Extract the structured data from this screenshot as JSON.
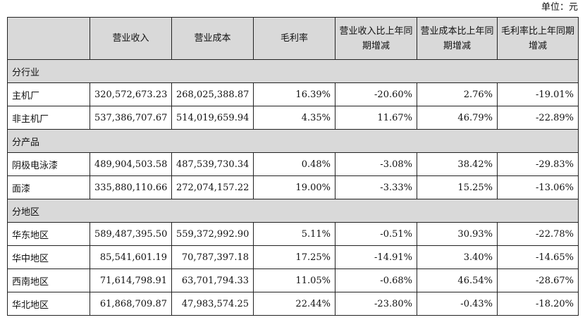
{
  "unit_label": "单位：元",
  "headers": [
    "",
    "营业收入",
    "营业成本",
    "毛利率",
    "营业收入比上年同期增减",
    "营业成本比上年同期增减",
    "毛利率比上年同期增减"
  ],
  "groups": [
    {
      "title": "分行业",
      "rows": [
        {
          "label": "主机厂",
          "revenue": "320,572,673.23",
          "cost": "268,025,388.87",
          "margin": "16.39%",
          "rev_change": "-20.60%",
          "cost_change": "2.76%",
          "margin_change": "-19.01%"
        },
        {
          "label": "非主机厂",
          "revenue": "537,386,707.67",
          "cost": "514,019,659.94",
          "margin": "4.35%",
          "rev_change": "11.67%",
          "cost_change": "46.79%",
          "margin_change": "-22.89%"
        }
      ]
    },
    {
      "title": "分产品",
      "rows": [
        {
          "label": "阴极电泳漆",
          "revenue": "489,904,503.58",
          "cost": "487,539,730.34",
          "margin": "0.48%",
          "rev_change": "-3.08%",
          "cost_change": "38.42%",
          "margin_change": "-29.83%"
        },
        {
          "label": "面漆",
          "revenue": "335,880,110.66",
          "cost": "272,074,157.22",
          "margin": "19.00%",
          "rev_change": "-3.33%",
          "cost_change": "15.25%",
          "margin_change": "-13.06%"
        }
      ]
    },
    {
      "title": "分地区",
      "rows": [
        {
          "label": "华东地区",
          "revenue": "589,487,395.50",
          "cost": "559,372,992.90",
          "margin": "5.11%",
          "rev_change": "-0.51%",
          "cost_change": "30.93%",
          "margin_change": "-22.78%"
        },
        {
          "label": "华中地区",
          "revenue": "85,541,601.19",
          "cost": "70,787,397.18",
          "margin": "17.25%",
          "rev_change": "-14.91%",
          "cost_change": "3.40%",
          "margin_change": "-14.65%"
        },
        {
          "label": "西南地区",
          "revenue": "71,614,798.91",
          "cost": "63,701,794.33",
          "margin": "11.05%",
          "rev_change": "-0.68%",
          "cost_change": "46.54%",
          "margin_change": "-28.67%"
        },
        {
          "label": "华北地区",
          "revenue": "61,868,709.87",
          "cost": "47,983,574.25",
          "margin": "22.44%",
          "rev_change": "-23.80%",
          "cost_change": "-0.43%",
          "margin_change": "-18.20%"
        }
      ]
    }
  ]
}
